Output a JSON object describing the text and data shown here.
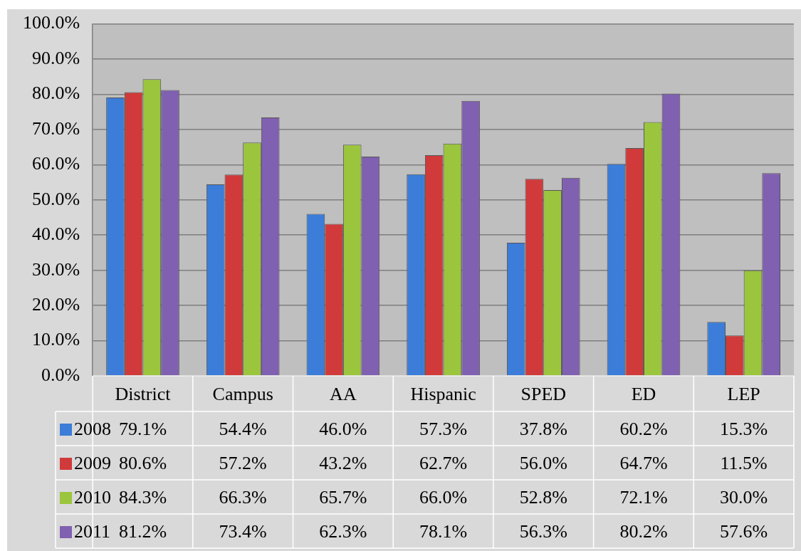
{
  "chart_data": {
    "type": "bar",
    "categories": [
      "District",
      "Campus",
      "AA",
      "Hispanic",
      "SPED",
      "ED",
      "LEP"
    ],
    "series": [
      {
        "name": "2008",
        "color": "#3b7dd8",
        "values": [
          79.1,
          54.4,
          46.0,
          57.3,
          37.8,
          60.2,
          15.3
        ],
        "value_labels": [
          "79.1%",
          "54.4%",
          "46.0%",
          "57.3%",
          "37.8%",
          "60.2%",
          "15.3%"
        ]
      },
      {
        "name": "2009",
        "color": "#d03a3a",
        "values": [
          80.6,
          57.2,
          43.2,
          62.7,
          56.0,
          64.7,
          11.5
        ],
        "value_labels": [
          "80.6%",
          "57.2%",
          "43.2%",
          "62.7%",
          "56.0%",
          "64.7%",
          "11.5%"
        ]
      },
      {
        "name": "2010",
        "color": "#9bc53d",
        "values": [
          84.3,
          66.3,
          65.7,
          66.0,
          52.8,
          72.1,
          30.0
        ],
        "value_labels": [
          "84.3%",
          "66.3%",
          "65.7%",
          "66.0%",
          "52.8%",
          "72.1%",
          "30.0%"
        ]
      },
      {
        "name": "2011",
        "color": "#8060b0",
        "values": [
          81.2,
          73.4,
          62.3,
          78.1,
          56.3,
          80.2,
          57.6
        ],
        "value_labels": [
          "81.2%",
          "73.4%",
          "62.3%",
          "78.1%",
          "56.3%",
          "80.2%",
          "57.6%"
        ]
      }
    ],
    "ylim": [
      0,
      100
    ],
    "yticks": [
      {
        "value": 0,
        "label": "0.0%"
      },
      {
        "value": 10,
        "label": "10.0%"
      },
      {
        "value": 20,
        "label": "20.0%"
      },
      {
        "value": 30,
        "label": "30.0%"
      },
      {
        "value": 40,
        "label": "40.0%"
      },
      {
        "value": 50,
        "label": "50.0%"
      },
      {
        "value": 60,
        "label": "60.0%"
      },
      {
        "value": 70,
        "label": "70.0%"
      },
      {
        "value": 80,
        "label": "80.0%"
      },
      {
        "value": 90,
        "label": "90.0%"
      },
      {
        "value": 100,
        "label": "100.0%"
      }
    ],
    "grid": "y",
    "legend": "bottom left"
  }
}
